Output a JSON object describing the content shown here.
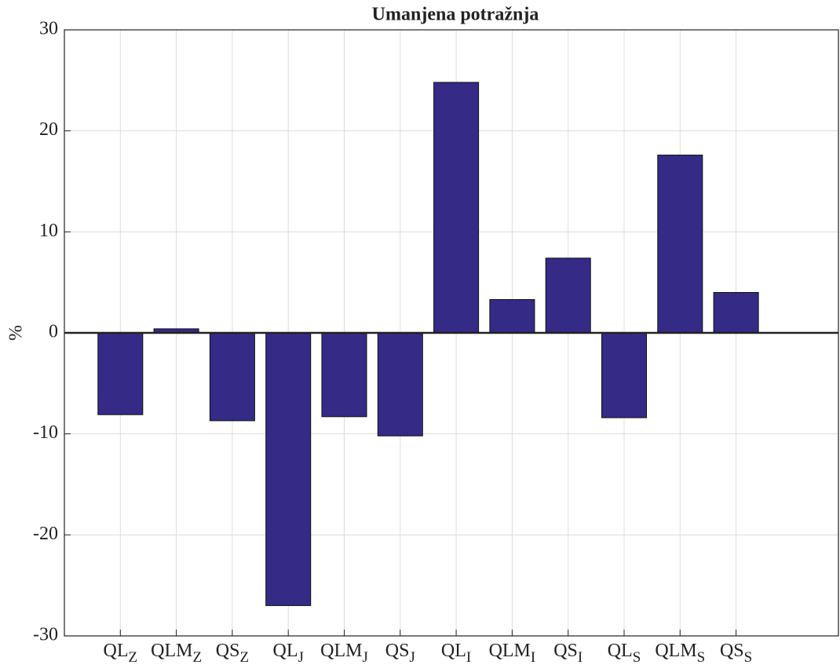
{
  "chart_data": {
    "type": "bar",
    "title": "Umanjena potražnja",
    "y_label": "%",
    "categories": [
      "QL_Z",
      "QLM_Z",
      "QS_Z",
      "QL_J",
      "QLM_J",
      "QS_J",
      "QL_I",
      "QLM_I",
      "QS_I",
      "QL_S",
      "QLM_S",
      "QS_S"
    ],
    "values": [
      -8.1,
      0.4,
      -8.7,
      -27.0,
      -8.3,
      -10.2,
      24.8,
      3.3,
      7.4,
      -8.4,
      17.6,
      4.0
    ],
    "color": "#352a86",
    "ylim": [
      -30,
      30
    ],
    "yticks": [
      -30,
      -20,
      -10,
      0,
      10,
      20,
      30
    ],
    "grid": true
  }
}
